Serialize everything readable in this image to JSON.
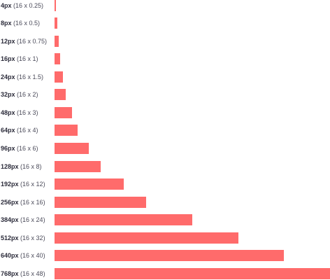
{
  "accent_color": "#ff6b6b",
  "spacing_scale": [
    {
      "value": 4,
      "px": "4px",
      "expr": "(16 x 0.25)"
    },
    {
      "value": 8,
      "px": "8px",
      "expr": "(16 x 0.5)"
    },
    {
      "value": 12,
      "px": "12px",
      "expr": "(16 x 0.75)"
    },
    {
      "value": 16,
      "px": "16px",
      "expr": "(16 x 1)"
    },
    {
      "value": 24,
      "px": "24px",
      "expr": "(16 x 1.5)"
    },
    {
      "value": 32,
      "px": "32px",
      "expr": "(16 x 2)"
    },
    {
      "value": 48,
      "px": "48px",
      "expr": "(16 x 3)"
    },
    {
      "value": 64,
      "px": "64px",
      "expr": "(16 x 4)"
    },
    {
      "value": 96,
      "px": "96px",
      "expr": "(16 x 6)"
    },
    {
      "value": 128,
      "px": "128px",
      "expr": "(16 x 8)"
    },
    {
      "value": 192,
      "px": "192px",
      "expr": "(16 x 12)"
    },
    {
      "value": 256,
      "px": "256px",
      "expr": "(16 x 16)"
    },
    {
      "value": 384,
      "px": "384px",
      "expr": "(16 x 24)"
    },
    {
      "value": 512,
      "px": "512px",
      "expr": "(16 x 32)"
    },
    {
      "value": 640,
      "px": "640px",
      "expr": "(16 x 40)"
    },
    {
      "value": 768,
      "px": "768px",
      "expr": "(16 x 48)"
    }
  ]
}
